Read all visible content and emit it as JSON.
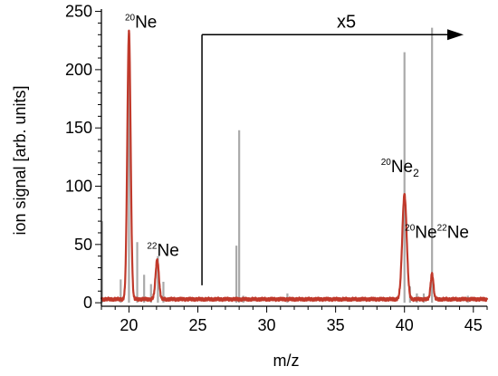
{
  "chart_data": {
    "type": "line",
    "xlabel": "m/z",
    "ylabel": "ion signal [arb. units]",
    "xlim": [
      18,
      46
    ],
    "ylim": [
      -3,
      252
    ],
    "x_ticks": [
      20,
      25,
      30,
      35,
      40,
      45
    ],
    "y_ticks": [
      0,
      50,
      100,
      150,
      200,
      250
    ],
    "grid": false,
    "scale_marker": {
      "label": "x5",
      "from_x": 25.3,
      "to_x": 46.0,
      "y": 230,
      "base_y": 15
    },
    "annotations": [
      {
        "id": "ne20",
        "mass": "20",
        "species": "Ne",
        "x": 20.1,
        "y": 233
      },
      {
        "id": "ne22",
        "mass": "22",
        "species": "Ne",
        "x": 22.1,
        "y": 37
      },
      {
        "id": "ne2",
        "mass": "20",
        "species": "Ne",
        "subscript": "2",
        "x": 40.0,
        "y": 109
      },
      {
        "id": "ne20ne22",
        "mass": "20",
        "species": "Ne",
        "mass2": "22",
        "species2": "Ne",
        "x": 42.0,
        "y": 62
      }
    ],
    "series": [
      {
        "color": "#aaaaaa",
        "style": "sticks",
        "x": [
          18.05,
          19.4,
          20.0,
          20.6,
          21.1,
          21.6,
          22.1,
          22.5,
          27.8,
          28.0,
          28.3,
          31.5,
          40.0,
          40.4,
          40.9,
          41.4,
          42.0,
          44.6
        ],
        "y": [
          70,
          20,
          232,
          52,
          24,
          16,
          40,
          18,
          49,
          148,
          6,
          8,
          215,
          14,
          8,
          8,
          236,
          6
        ]
      },
      {
        "color": "#c0392b",
        "style": "line",
        "baseline": 3,
        "noise": 1.5,
        "peaks": [
          {
            "x": 20.0,
            "y": 233,
            "width": 0.12
          },
          {
            "x": 22.05,
            "y": 37,
            "width": 0.12
          },
          {
            "x": 40.0,
            "y": 93,
            "width": 0.16
          },
          {
            "x": 42.0,
            "y": 25,
            "width": 0.1
          }
        ]
      }
    ]
  }
}
